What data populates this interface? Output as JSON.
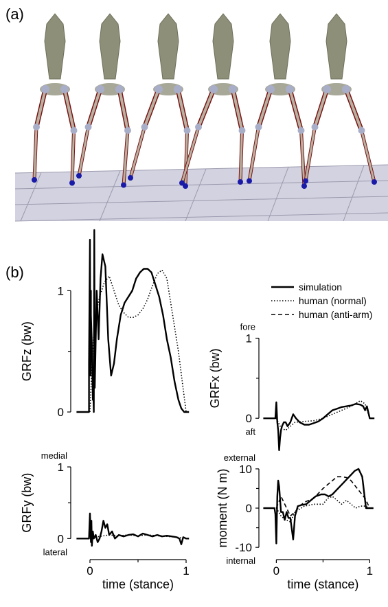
{
  "panel_a_label": "(a)",
  "panel_b_label": "(b)",
  "legend": [
    {
      "label": "simulation",
      "style": "solid"
    },
    {
      "label": "human (normal)",
      "style": "dotted"
    },
    {
      "label": "human (anti-arm)",
      "style": "dashed"
    }
  ],
  "colors": {
    "torso": "#8e8f78",
    "bone": "#b9b1a1",
    "muscle": "#7a1212",
    "joint": "#a9aec8",
    "foot_marker": "#1a1aa8",
    "ground": "#d2d2e0"
  },
  "chart_data": [
    {
      "id": "grfz",
      "type": "line",
      "ylabel": "GRFz (bw)",
      "xlabel": "",
      "ylim": [
        0,
        1.5
      ],
      "xlim": [
        -0.15,
        1.1
      ],
      "yticks": [
        0,
        1
      ],
      "xticks": [],
      "annotations": {
        "top": "",
        "bottom": ""
      },
      "series": [
        {
          "name": "simulation",
          "style": "solid",
          "x": [
            -0.14,
            -0.01,
            -0.01,
            0.0,
            0.005,
            0.01,
            0.01,
            0.02,
            0.03,
            0.035,
            0.04,
            0.045,
            0.05,
            0.07,
            0.09,
            0.11,
            0.13,
            0.16,
            0.19,
            0.22,
            0.25,
            0.28,
            0.32,
            0.36,
            0.4,
            0.44,
            0.48,
            0.52,
            0.56,
            0.6,
            0.64,
            0.68,
            0.72,
            0.76,
            0.8,
            0.84,
            0.88,
            0.92,
            0.95,
            0.98,
            1.0,
            1.03
          ],
          "y": [
            0.0,
            0.0,
            0.4,
            1.42,
            0.3,
            1.0,
            0.8,
            0.55,
            0.1,
            0.15,
            0.0,
            1.5,
            0.2,
            1.0,
            0.6,
            1.1,
            1.3,
            1.2,
            0.6,
            0.3,
            0.4,
            0.6,
            0.8,
            0.9,
            0.95,
            1.0,
            1.1,
            1.15,
            1.18,
            1.18,
            1.15,
            1.05,
            0.95,
            0.8,
            0.6,
            0.45,
            0.25,
            0.1,
            0.03,
            0.0,
            0.0,
            0.0
          ]
        },
        {
          "name": "human (normal)",
          "style": "dotted",
          "x": [
            0.0,
            0.03,
            0.06,
            0.1,
            0.15,
            0.2,
            0.25,
            0.3,
            0.35,
            0.4,
            0.45,
            0.5,
            0.55,
            0.6,
            0.65,
            0.7,
            0.75,
            0.8,
            0.84,
            0.88,
            0.92,
            0.96,
            1.0
          ],
          "y": [
            0.0,
            0.55,
            0.8,
            0.95,
            1.07,
            1.12,
            1.0,
            0.88,
            0.82,
            0.78,
            0.78,
            0.8,
            0.85,
            0.93,
            1.04,
            1.14,
            1.17,
            1.1,
            0.9,
            0.7,
            0.5,
            0.25,
            0.0
          ]
        }
      ]
    },
    {
      "id": "grfx",
      "type": "line",
      "ylabel": "GRFx (bw)",
      "xlabel": "",
      "ylim": [
        -0.35,
        1.15
      ],
      "xlim": [
        -0.15,
        1.1
      ],
      "yticks": [
        0,
        1
      ],
      "xticks": [],
      "annotations": {
        "top": "fore",
        "bottom": "aft"
      },
      "series": [
        {
          "name": "simulation",
          "style": "solid",
          "x": [
            -0.14,
            -0.01,
            0.0,
            0.01,
            0.02,
            0.03,
            0.04,
            0.05,
            0.06,
            0.08,
            0.1,
            0.12,
            0.15,
            0.18,
            0.21,
            0.25,
            0.3,
            0.35,
            0.4,
            0.45,
            0.5,
            0.55,
            0.6,
            0.65,
            0.7,
            0.75,
            0.8,
            0.85,
            0.9,
            0.93,
            0.95,
            0.97,
            1.0,
            1.05
          ],
          "y": [
            0.0,
            0.0,
            0.2,
            -0.05,
            -0.15,
            -0.4,
            -0.25,
            -0.15,
            -0.1,
            -0.05,
            -0.05,
            -0.1,
            -0.05,
            0.05,
            0.0,
            -0.05,
            -0.08,
            -0.08,
            -0.06,
            -0.04,
            0.0,
            0.05,
            0.1,
            0.12,
            0.14,
            0.15,
            0.16,
            0.18,
            0.17,
            0.15,
            0.1,
            0.15,
            0.0,
            0.0
          ]
        },
        {
          "name": "human (normal)",
          "style": "dotted",
          "x": [
            0.0,
            0.05,
            0.1,
            0.15,
            0.2,
            0.3,
            0.4,
            0.5,
            0.6,
            0.7,
            0.8,
            0.9,
            0.95,
            1.0
          ],
          "y": [
            0.0,
            -0.12,
            -0.15,
            -0.1,
            -0.05,
            -0.04,
            -0.03,
            0.0,
            0.05,
            0.1,
            0.15,
            0.22,
            0.18,
            0.0
          ]
        }
      ]
    },
    {
      "id": "grfy",
      "type": "line",
      "ylabel": "GRFy (bw)",
      "xlabel": "time (stance)",
      "ylim": [
        -0.15,
        1.0
      ],
      "xlim": [
        -0.15,
        1.1
      ],
      "yticks": [
        0,
        1
      ],
      "xticks": [
        0,
        1
      ],
      "annotations": {
        "top": "medial",
        "bottom": "lateral"
      },
      "series": [
        {
          "name": "simulation",
          "style": "solid",
          "x": [
            -0.14,
            -0.01,
            0.0,
            0.01,
            0.015,
            0.02,
            0.03,
            0.04,
            0.06,
            0.08,
            0.1,
            0.12,
            0.14,
            0.16,
            0.18,
            0.2,
            0.23,
            0.26,
            0.3,
            0.35,
            0.4,
            0.45,
            0.5,
            0.55,
            0.6,
            0.65,
            0.7,
            0.75,
            0.8,
            0.85,
            0.9,
            0.93,
            0.95,
            0.97,
            1.0,
            1.03
          ],
          "y": [
            0.0,
            0.0,
            0.35,
            -0.05,
            0.25,
            -0.1,
            0.1,
            0.0,
            0.05,
            -0.05,
            0.0,
            0.1,
            0.25,
            0.15,
            0.2,
            0.05,
            0.1,
            0.0,
            0.05,
            0.03,
            0.05,
            0.06,
            0.03,
            0.07,
            0.05,
            0.03,
            0.05,
            0.03,
            0.04,
            0.03,
            0.02,
            0.0,
            -0.08,
            0.02,
            0.0,
            0.0
          ]
        },
        {
          "name": "human (normal)",
          "style": "dotted",
          "x": [
            0.0,
            0.1,
            0.2,
            0.3,
            0.4,
            0.5,
            0.6,
            0.7,
            0.8,
            0.9,
            1.0
          ],
          "y": [
            0.0,
            0.03,
            0.05,
            0.04,
            0.05,
            0.04,
            0.05,
            0.04,
            0.03,
            0.02,
            0.0
          ]
        }
      ]
    },
    {
      "id": "moment",
      "type": "line",
      "ylabel": "moment (N m)",
      "xlabel": "time (stance)",
      "ylim": [
        -10.5,
        10.5
      ],
      "xlim": [
        -0.15,
        1.1
      ],
      "yticks": [
        -10,
        0,
        10
      ],
      "xticks": [
        0,
        1
      ],
      "annotations": {
        "top": "external",
        "bottom": "internal"
      },
      "series": [
        {
          "name": "simulation",
          "style": "solid",
          "x": [
            -0.14,
            -0.02,
            -0.01,
            0.0,
            0.01,
            0.02,
            0.03,
            0.05,
            0.07,
            0.09,
            0.11,
            0.13,
            0.15,
            0.18,
            0.2,
            0.23,
            0.27,
            0.32,
            0.37,
            0.42,
            0.48,
            0.52,
            0.56,
            0.6,
            0.64,
            0.68,
            0.72,
            0.76,
            0.8,
            0.84,
            0.88,
            0.92,
            0.94,
            0.96,
            1.0,
            1.04
          ],
          "y": [
            0.0,
            0.0,
            -1.5,
            -9.0,
            3.0,
            7.0,
            5.5,
            -1.0,
            -1.0,
            -3.0,
            -1.0,
            -2.5,
            -2.5,
            -8.0,
            -2.0,
            0.5,
            0.8,
            1.0,
            2.0,
            3.0,
            3.5,
            3.5,
            3.0,
            3.5,
            4.5,
            5.5,
            6.5,
            7.5,
            8.5,
            9.5,
            10.0,
            8.0,
            4.0,
            0.0,
            0.0,
            0.0
          ]
        },
        {
          "name": "human (normal)",
          "style": "dotted",
          "x": [
            0.0,
            0.05,
            0.1,
            0.15,
            0.2,
            0.3,
            0.4,
            0.5,
            0.55,
            0.6,
            0.65,
            0.7,
            0.75,
            0.8,
            0.85,
            0.9,
            0.95,
            1.0
          ],
          "y": [
            0.0,
            -2.0,
            -3.0,
            -3.5,
            -1.0,
            0.5,
            1.0,
            1.0,
            2.5,
            3.0,
            2.0,
            1.0,
            2.0,
            1.0,
            0.0,
            0.5,
            0.5,
            0.0
          ]
        },
        {
          "name": "human (anti-arm)",
          "style": "dashed",
          "x": [
            0.0,
            0.05,
            0.1,
            0.15,
            0.2,
            0.25,
            0.3,
            0.4,
            0.5,
            0.6,
            0.65,
            0.7,
            0.75,
            0.8,
            0.85,
            0.9,
            0.95,
            1.0
          ],
          "y": [
            0.0,
            3.0,
            0.5,
            -2.0,
            -1.0,
            0.5,
            1.5,
            2.5,
            5.0,
            7.0,
            8.0,
            8.0,
            7.8,
            7.0,
            5.5,
            4.0,
            2.5,
            0.0
          ]
        }
      ]
    }
  ]
}
